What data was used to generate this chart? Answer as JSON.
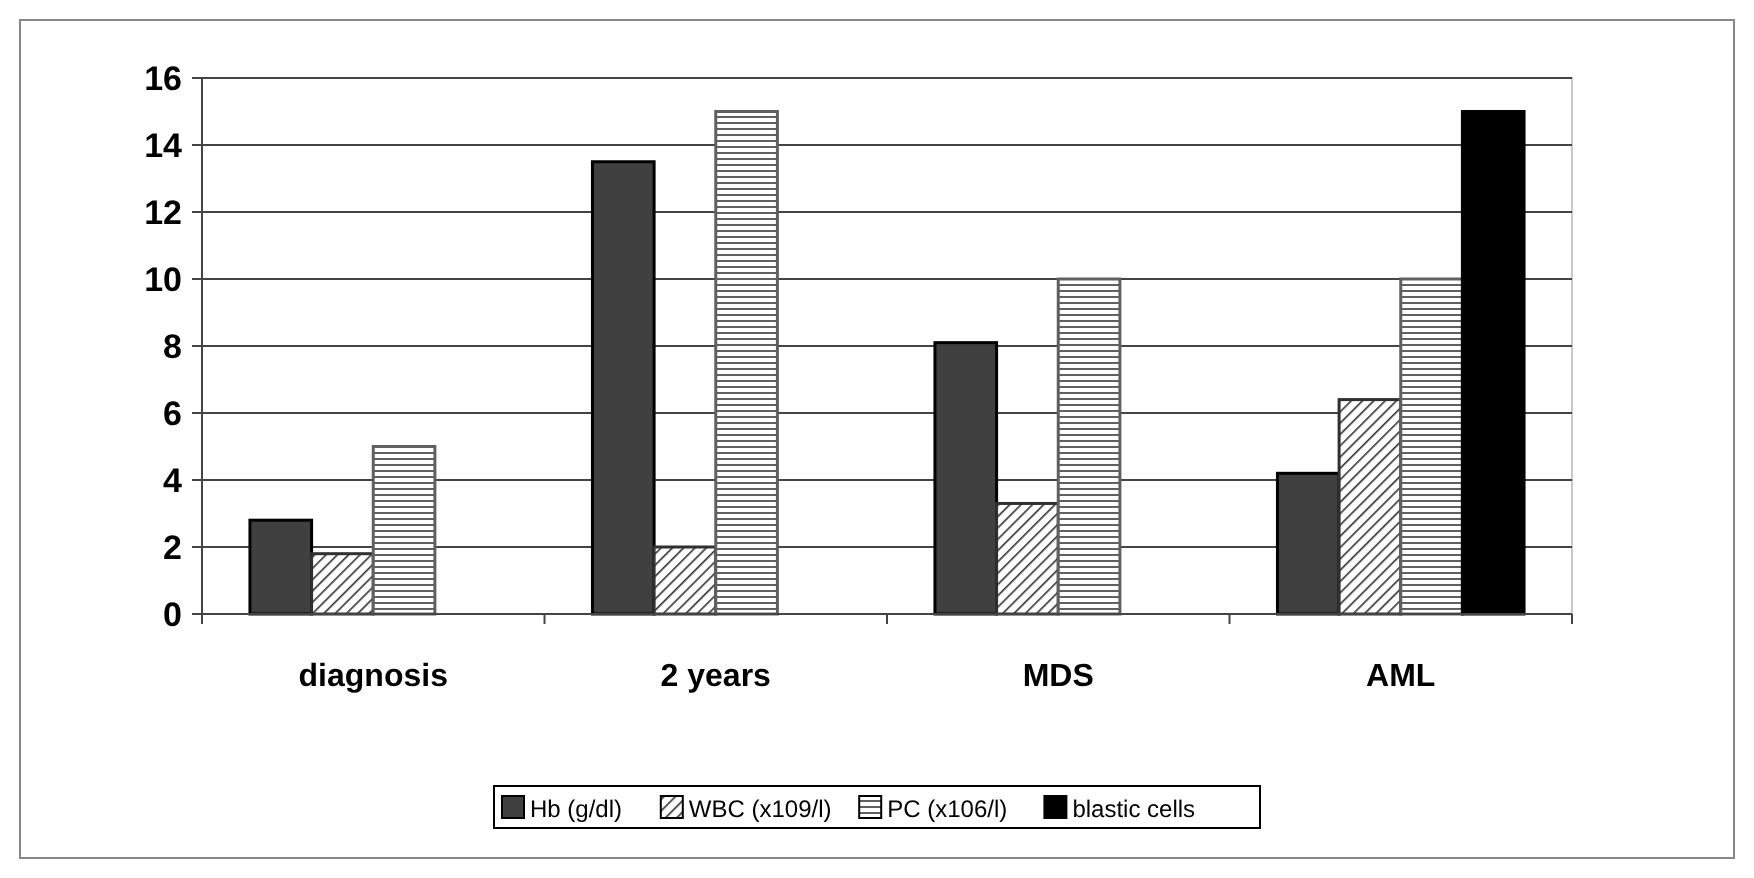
{
  "chart_data": {
    "type": "bar",
    "categories": [
      "diagnosis",
      "2 years",
      "MDS",
      "AML"
    ],
    "series": [
      {
        "name": "Hb (g/dl)",
        "color": "#404040",
        "values": [
          2.8,
          13.5,
          8.1,
          4.2
        ]
      },
      {
        "name": "WBC (x109/l)",
        "color": "#303030",
        "values": [
          1.8,
          2.0,
          3.3,
          6.4
        ]
      },
      {
        "name": "PC (x106/l)",
        "color": "#606060",
        "values": [
          5,
          15,
          10,
          10
        ]
      },
      {
        "name": "blastic cells",
        "color": "#000000",
        "values": [
          null,
          null,
          null,
          15
        ]
      }
    ],
    "ylim": [
      0,
      16
    ],
    "yticks": [
      0,
      2,
      4,
      6,
      8,
      10,
      12,
      14,
      16
    ],
    "grid": "y",
    "legend": "bottom"
  }
}
